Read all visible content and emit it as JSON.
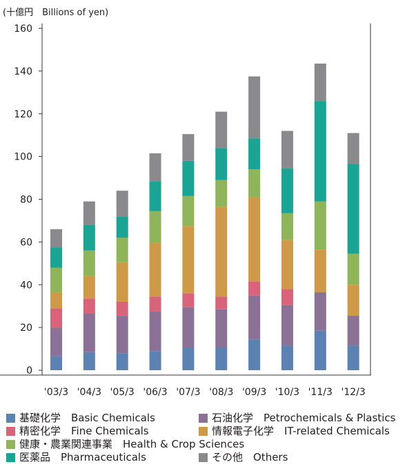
{
  "chart_data": {
    "type": "bar",
    "stacked": true,
    "unit_label": "(十億円　Billions of yen)",
    "categories": [
      "'03/3",
      "'04/3",
      "'05/3",
      "'06/3",
      "'07/3",
      "'08/3",
      "'09/3",
      "'10/3",
      "'11/3",
      "'12/3"
    ],
    "ylim": [
      0,
      160
    ],
    "yticks": [
      0,
      20,
      40,
      60,
      80,
      100,
      120,
      140,
      160
    ],
    "grid": false,
    "legend_position": "bottom",
    "series": [
      {
        "name": "基礎化学　Basic Chemicals",
        "color": "#5b82b3",
        "values": [
          6.5,
          8.5,
          8,
          9,
          10.5,
          10.5,
          14.5,
          11.5,
          18.5,
          11.5
        ]
      },
      {
        "name": "石油化学　Petrochemicals & Plastics",
        "color": "#8b7196",
        "values": [
          13.5,
          18,
          17.5,
          18.5,
          19,
          18,
          20.5,
          19,
          18,
          14
        ]
      },
      {
        "name": "精密化学　Fine Chemicals",
        "color": "#d9647a",
        "values": [
          9,
          7,
          6.5,
          7,
          6.5,
          6,
          6.5,
          7.5,
          0,
          0
        ]
      },
      {
        "name": "情報電子化学　IT-related Chemicals",
        "color": "#cf9a47",
        "values": [
          7.5,
          10.5,
          18.5,
          25,
          31.5,
          42,
          39.5,
          23,
          20,
          14.5
        ]
      },
      {
        "name": "健康・農業関連事業　Health & Crop Sciences",
        "color": "#8fb55a",
        "values": [
          11.5,
          12,
          11.5,
          15,
          14,
          12.5,
          13,
          12.5,
          22.5,
          14.5
        ]
      },
      {
        "name": "医薬品　Pharmaceuticals",
        "color": "#1aa493",
        "values": [
          9.5,
          12,
          10,
          14,
          16.5,
          15,
          14.5,
          21,
          47,
          42
        ]
      },
      {
        "name": "その他　Others",
        "color": "#8a8a8c",
        "values": [
          8.5,
          11,
          12,
          13,
          12.5,
          17,
          29,
          17.5,
          17.5,
          14.5
        ]
      }
    ]
  }
}
